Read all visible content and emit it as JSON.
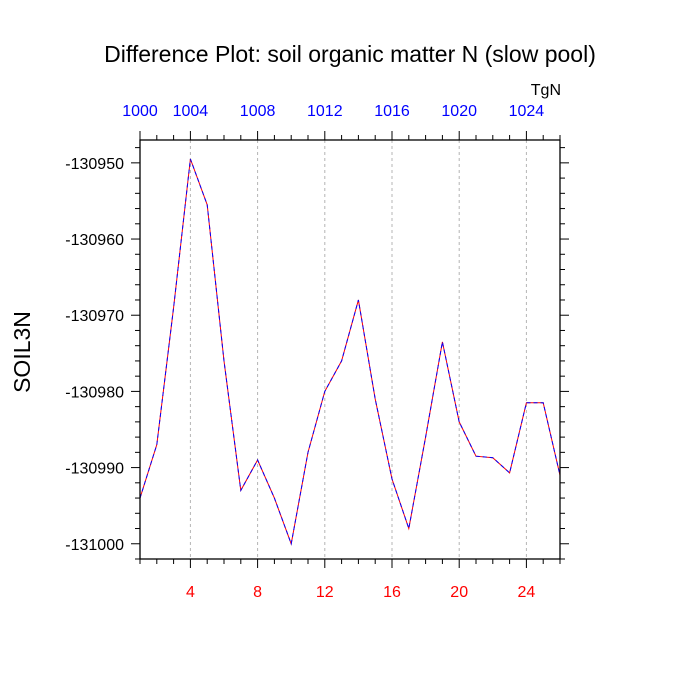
{
  "chart_data": {
    "type": "line",
    "title": "Difference Plot: soil organic matter N (slow pool)",
    "ylabel": "SOIL3N",
    "top_axis_unit": "TgN",
    "x": [
      1,
      2,
      3,
      4,
      5,
      6,
      7,
      8,
      9,
      10,
      11,
      12,
      13,
      14,
      15,
      16,
      17,
      18,
      19,
      20,
      21,
      22,
      23,
      24,
      25,
      26
    ],
    "series": [
      {
        "name": "series-red",
        "color": "#ff0000",
        "values": [
          -130994,
          -130987,
          -130969,
          -130949.5,
          -130955.5,
          -130976,
          -130993,
          -130989,
          -130994,
          -131000,
          -130988,
          -130980,
          -130976,
          -130968,
          -130981,
          -130991.5,
          -130998,
          -130986,
          -130973.5,
          -130984,
          -130988.5,
          -130988.7,
          -130990.7,
          -130981.5,
          -130981.5,
          -130991
        ],
        "dashed": false
      },
      {
        "name": "series-blue",
        "color": "#0000ff",
        "values": [
          -130994,
          -130987,
          -130969,
          -130949.5,
          -130955.5,
          -130976,
          -130993,
          -130989,
          -130994,
          -131000,
          -130988,
          -130980,
          -130976,
          -130968,
          -130981,
          -130991.5,
          -130998,
          -130986,
          -130973.5,
          -130984,
          -130988.5,
          -130988.7,
          -130990.7,
          -130981.5,
          -130981.5,
          -130991
        ],
        "dashed": true
      }
    ],
    "xlim": [
      1,
      26
    ],
    "ylim": [
      -131002,
      -130947
    ],
    "x_ticks": [
      4,
      8,
      12,
      16,
      20,
      24
    ],
    "x_tick_labels": [
      "4",
      "8",
      "12",
      "16",
      "20",
      "24"
    ],
    "x_tick_color": "#ff0000",
    "y_ticks": [
      -130950,
      -130960,
      -130970,
      -130980,
      -130990,
      -131000
    ],
    "y_tick_labels": [
      "-130950",
      "-130960",
      "-130970",
      "-130980",
      "-130990",
      "-131000"
    ],
    "top_ticks": [
      1,
      4,
      8,
      12,
      16,
      20,
      24
    ],
    "top_tick_labels": [
      "1000",
      "1004",
      "1008",
      "1012",
      "1016",
      "1020",
      "1024"
    ],
    "top_tick_color": "#0000ff",
    "grid": true
  }
}
